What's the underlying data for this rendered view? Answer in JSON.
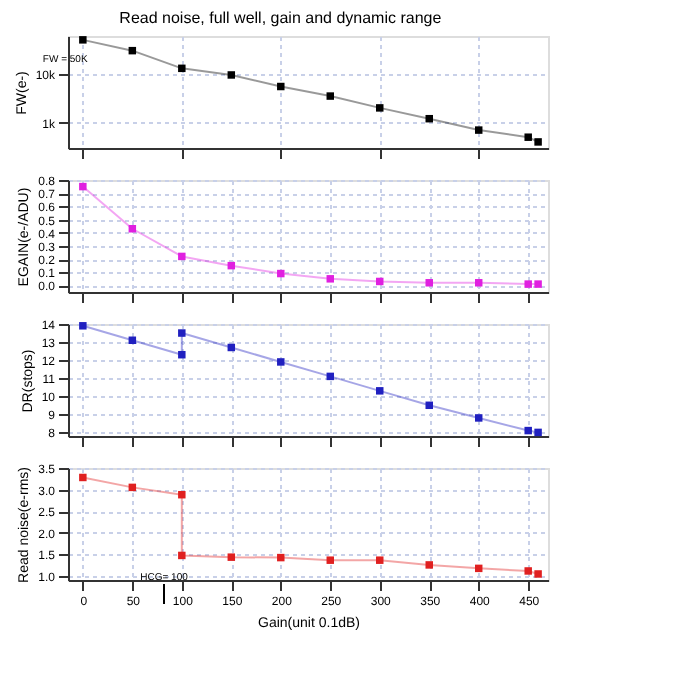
{
  "chart_data": [
    {
      "type": "line",
      "title": "Read noise, full well, gain and dynamic range",
      "ylabel": "FW(e-)",
      "log": "y",
      "marker": "square",
      "grid": true,
      "tick_labels": "y",
      "x": [
        0,
        50,
        100,
        150,
        200,
        250,
        300,
        350,
        400,
        450,
        460
      ],
      "series": [
        {
          "color": "#000000",
          "values": [
            50000,
            30000,
            13000,
            9500,
            5500,
            3500,
            2000,
            1200,
            700,
            500,
            400
          ]
        }
      ],
      "xlim": [
        -15,
        470
      ],
      "xticks": [
        0,
        50,
        100,
        150,
        200,
        250,
        300,
        350,
        400,
        450
      ],
      "ylim": [
        300,
        60000
      ],
      "yticks": [
        {
          "value": 1000,
          "label": "1k"
        },
        {
          "value": 10000,
          "label": "10k"
        }
      ],
      "annotations": [
        {
          "text": "FW = 50K",
          "x": 0,
          "y": 50000
        }
      ]
    },
    {
      "type": "line",
      "ylabel": "EGAIN(e-/ADU)",
      "marker": "square",
      "grid": true,
      "tick_labels": "y",
      "x": [
        0,
        50,
        100,
        150,
        200,
        250,
        300,
        350,
        400,
        450,
        460
      ],
      "series": [
        {
          "color": "#e020e0",
          "values": [
            0.75,
            0.43,
            0.22,
            0.15,
            0.09,
            0.05,
            0.03,
            0.02,
            0.02,
            0.01,
            0.01
          ]
        }
      ],
      "xlim": [
        -15,
        470
      ],
      "xticks": [
        0,
        50,
        100,
        150,
        200,
        250,
        300,
        350,
        400,
        450
      ],
      "ylim": [
        -0.05,
        0.8
      ],
      "yticks": [
        {
          "value": 0,
          "label": "0.0"
        },
        0.1,
        0.2,
        0.3,
        0.4,
        0.5,
        0.6,
        0.7,
        0.8
      ]
    },
    {
      "type": "line",
      "ylabel": "DR(stops)",
      "marker": "square",
      "grid": true,
      "tick_labels": "y",
      "x": [
        0,
        50,
        100,
        100,
        150,
        200,
        250,
        300,
        350,
        400,
        450,
        460
      ],
      "series": [
        {
          "color": "#2020c0",
          "values": [
            13.9,
            13.1,
            12.3,
            13.5,
            12.7,
            11.9,
            11.1,
            10.3,
            9.5,
            8.8,
            8.1,
            8.0
          ]
        }
      ],
      "xlim": [
        -15,
        470
      ],
      "xticks": [
        0,
        50,
        100,
        150,
        200,
        250,
        300,
        350,
        400,
        450
      ],
      "ylim": [
        7.8,
        14
      ],
      "yticks": [
        8,
        9,
        10,
        11,
        12,
        13,
        14
      ]
    },
    {
      "type": "line",
      "ylabel": "Read noise(e-rms)",
      "xlabel": "Gain(unit 0.1dB)",
      "marker": "square",
      "grid": true,
      "x": [
        0,
        50,
        100,
        100,
        150,
        200,
        250,
        300,
        350,
        400,
        450,
        460
      ],
      "series": [
        {
          "color": "#e02020",
          "values": [
            3.28,
            3.05,
            2.88,
            1.47,
            1.43,
            1.42,
            1.36,
            1.36,
            1.25,
            1.17,
            1.11,
            1.04
          ]
        }
      ],
      "xlim": [
        -15,
        470
      ],
      "xticks": [
        0,
        50,
        100,
        150,
        200,
        250,
        300,
        350,
        400,
        450
      ],
      "ylim": [
        0.9,
        3.5
      ],
      "yticks": [
        {
          "value": 1,
          "label": "1.0"
        },
        1.5,
        {
          "value": 2,
          "label": "2.0"
        },
        2.5,
        {
          "value": 3,
          "label": "3.0"
        },
        3.5
      ],
      "annotations": [
        "HCG= 100"
      ]
    }
  ]
}
